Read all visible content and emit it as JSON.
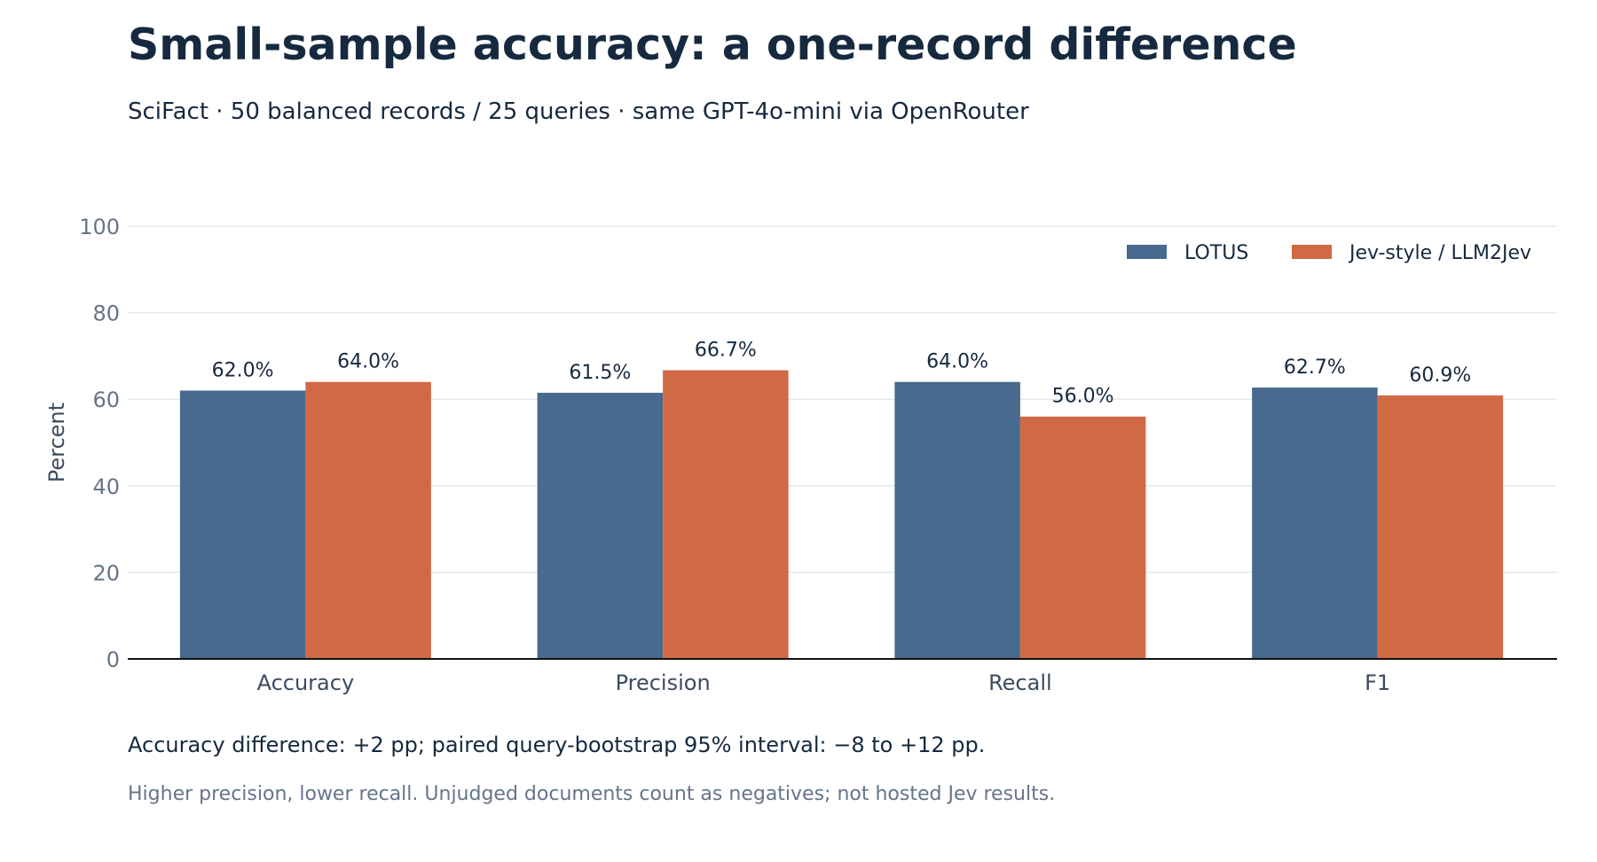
{
  "title": "Small-sample accuracy: a one-record difference",
  "subtitle": "SciFact · 50 balanced records / 25 queries · same GPT-4o-mini via OpenRouter",
  "note": "Accuracy difference: +2 pp; paired query-bootstrap 95% interval: −8 to +12 pp.",
  "caveat": "Higher precision, lower recall. Unjudged documents count as negatives; not hosted Jev results.",
  "chart_data": {
    "type": "bar",
    "categories": [
      "Accuracy",
      "Precision",
      "Recall",
      "F1"
    ],
    "series": [
      {
        "name": "LOTUS",
        "values": [
          62.0,
          61.5,
          64.0,
          62.7
        ],
        "labels": [
          "62.0%",
          "61.5%",
          "64.0%",
          "62.7%"
        ],
        "color": "#476a8e"
      },
      {
        "name": "Jev-style / LLM2Jev",
        "values": [
          64.0,
          66.7,
          56.0,
          60.9
        ],
        "labels": [
          "64.0%",
          "66.7%",
          "56.0%",
          "60.9%"
        ],
        "color": "#d06a45"
      }
    ],
    "ylabel": "Percent",
    "xlabel": "",
    "ylim": [
      0,
      100
    ],
    "yticks": [
      0,
      20,
      40,
      60,
      80,
      100
    ],
    "grid": true,
    "legend": "top-right"
  }
}
